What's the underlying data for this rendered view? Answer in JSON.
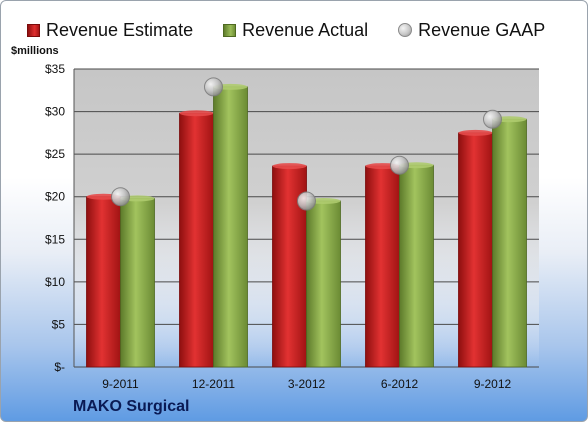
{
  "legend": {
    "estimate_label": "Revenue Estimate",
    "actual_label": "Revenue Actual",
    "gaap_label": "Revenue GAAP"
  },
  "unit_label": "$millions",
  "company": "MAKO Surgical",
  "colors": {
    "estimate": "#cc1d1d",
    "actual": "#86a646",
    "gaap": "#b9b9b9",
    "plot_bg": "#c9c9c9"
  },
  "chart_data": {
    "type": "bar",
    "categories": [
      "9-2011",
      "12-2011",
      "3-2012",
      "6-2012",
      "9-2012"
    ],
    "series": [
      {
        "name": "Revenue Estimate",
        "values": [
          20.0,
          29.8,
          23.6,
          23.6,
          27.5
        ]
      },
      {
        "name": "Revenue Actual",
        "values": [
          19.8,
          32.9,
          19.5,
          23.7,
          29.1
        ]
      },
      {
        "name": "Revenue GAAP",
        "values": [
          20.0,
          32.9,
          19.5,
          23.7,
          29.1
        ],
        "marker": "circle"
      }
    ],
    "ylabel": "$millions",
    "ylim": [
      0,
      35
    ],
    "yticks": [
      0,
      5,
      10,
      15,
      20,
      25,
      30,
      35
    ],
    "ytick_labels": [
      "$-",
      "$5",
      "$10",
      "$15",
      "$20",
      "$25",
      "$30",
      "$35"
    ],
    "grid": true,
    "legend_position": "top"
  }
}
